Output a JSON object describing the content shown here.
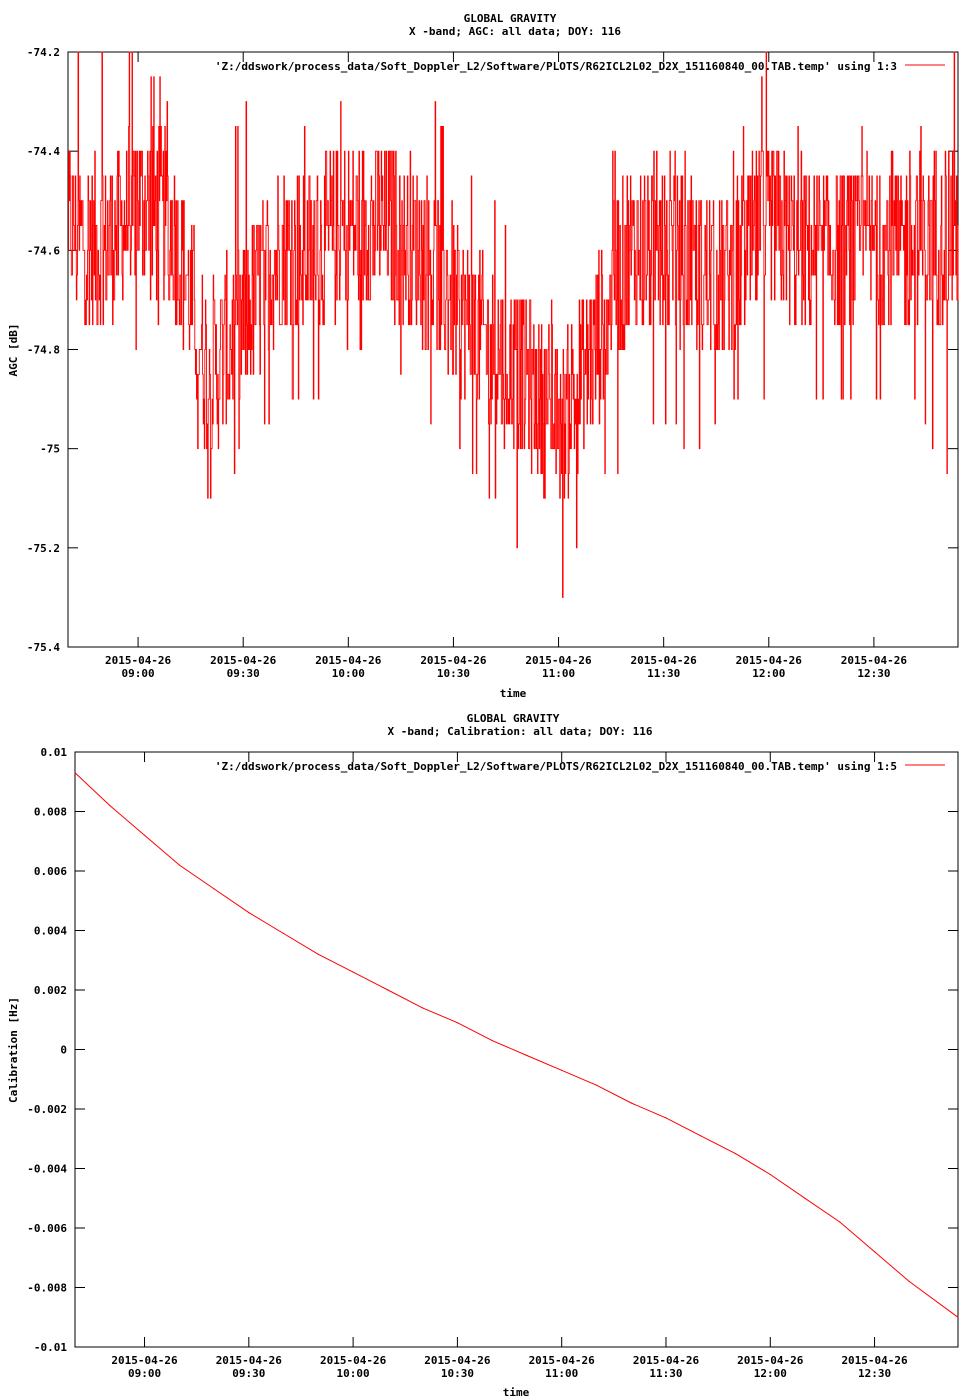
{
  "chart_data": [
    {
      "type": "line",
      "title": "GLOBAL GRAVITY",
      "subtitle": "X -band; AGC: all data; DOY: 116",
      "xlabel": "time",
      "ylabel": "AGC [dB]",
      "legend": "'Z:/ddswork/process_data/Soft_Doppler_L2/Software/PLOTS/R62ICL2L02_D2X_151160840_00.TAB.temp' using 1:3",
      "legend_position": "top-right",
      "color": "#ff0000",
      "xlim": [
        "2015-04-26 08:40",
        "2015-04-26 12:54"
      ],
      "ylim": [
        -75.4,
        -74.2
      ],
      "x_ticks": [
        {
          "date": "2015-04-26",
          "time": "09:00",
          "value": "2015-04-26 09:00"
        },
        {
          "date": "2015-04-26",
          "time": "09:30",
          "value": "2015-04-26 09:30"
        },
        {
          "date": "2015-04-26",
          "time": "10:00",
          "value": "2015-04-26 10:00"
        },
        {
          "date": "2015-04-26",
          "time": "10:30",
          "value": "2015-04-26 10:30"
        },
        {
          "date": "2015-04-26",
          "time": "11:00",
          "value": "2015-04-26 11:00"
        },
        {
          "date": "2015-04-26",
          "time": "11:30",
          "value": "2015-04-26 11:30"
        },
        {
          "date": "2015-04-26",
          "time": "12:00",
          "value": "2015-04-26 12:00"
        },
        {
          "date": "2015-04-26",
          "time": "12:30",
          "value": "2015-04-26 12:30"
        }
      ],
      "y_ticks": [
        "-74.2",
        "-74.4",
        "-74.6",
        "-74.8",
        "-75",
        "-75.2",
        "-75.4"
      ],
      "series": [
        {
          "x": [
            "2015-04-26 08:40",
            "2015-04-26 08:50",
            "2015-04-26 09:00",
            "2015-04-26 09:10",
            "2015-04-26 09:20",
            "2015-04-26 09:30",
            "2015-04-26 09:40",
            "2015-04-26 09:50",
            "2015-04-26 10:00",
            "2015-04-26 10:10",
            "2015-04-26 10:20",
            "2015-04-26 10:30",
            "2015-04-26 10:40",
            "2015-04-26 10:50",
            "2015-04-26 11:00",
            "2015-04-26 11:10",
            "2015-04-26 11:20",
            "2015-04-26 11:30",
            "2015-04-26 11:40",
            "2015-04-26 11:50",
            "2015-04-26 12:00",
            "2015-04-26 12:10",
            "2015-04-26 12:20",
            "2015-04-26 12:30",
            "2015-04-26 12:40",
            "2015-04-26 12:54"
          ],
          "y": [
            -74.55,
            -74.6,
            -74.5,
            -74.55,
            -74.85,
            -74.75,
            -74.6,
            -74.6,
            -74.55,
            -74.55,
            -74.6,
            -74.7,
            -74.8,
            -74.85,
            -74.95,
            -74.8,
            -74.6,
            -74.6,
            -74.65,
            -74.65,
            -74.55,
            -74.6,
            -74.6,
            -74.6,
            -74.6,
            -74.55
          ],
          "min": [
            -74.7,
            -74.8,
            -74.8,
            -74.7,
            -75.1,
            -75.0,
            -74.9,
            -74.9,
            -74.8,
            -74.8,
            -74.9,
            -75.0,
            -75.1,
            -75.2,
            -75.3,
            -75.1,
            -75.0,
            -74.95,
            -75.0,
            -74.9,
            -74.9,
            -74.9,
            -74.9,
            -74.9,
            -74.9,
            -75.1
          ],
          "max": [
            -74.2,
            -74.2,
            -74.2,
            -74.3,
            -74.5,
            -74.3,
            -74.4,
            -74.3,
            -74.3,
            -74.4,
            -74.2,
            -74.4,
            -74.5,
            -74.6,
            -74.7,
            -74.4,
            -74.4,
            -74.4,
            -74.4,
            -74.4,
            -74.2,
            -74.4,
            -74.3,
            -74.4,
            -74.4,
            -74.2
          ]
        }
      ]
    },
    {
      "type": "line",
      "title": "GLOBAL GRAVITY",
      "subtitle": "X -band; Calibration: all data; DOY: 116",
      "xlabel": "time",
      "ylabel": "Calibration [Hz]",
      "legend": "'Z:/ddswork/process_data/Soft_Doppler_L2/Software/PLOTS/R62ICL2L02_D2X_151160840_00.TAB.temp' using 1:5",
      "legend_position": "top-right",
      "color": "#ff0000",
      "xlim": [
        "2015-04-26 08:40",
        "2015-04-26 12:54"
      ],
      "ylim": [
        -0.01,
        0.01
      ],
      "x_ticks": [
        {
          "date": "2015-04-26",
          "time": "09:00",
          "value": "2015-04-26 09:00"
        },
        {
          "date": "2015-04-26",
          "time": "09:30",
          "value": "2015-04-26 09:30"
        },
        {
          "date": "2015-04-26",
          "time": "10:00",
          "value": "2015-04-26 10:00"
        },
        {
          "date": "2015-04-26",
          "time": "10:30",
          "value": "2015-04-26 10:30"
        },
        {
          "date": "2015-04-26",
          "time": "11:00",
          "value": "2015-04-26 11:00"
        },
        {
          "date": "2015-04-26",
          "time": "11:30",
          "value": "2015-04-26 11:30"
        },
        {
          "date": "2015-04-26",
          "time": "12:00",
          "value": "2015-04-26 12:00"
        },
        {
          "date": "2015-04-26",
          "time": "12:30",
          "value": "2015-04-26 12:30"
        }
      ],
      "y_ticks": [
        "0.01",
        "0.008",
        "0.006",
        "0.004",
        "0.002",
        "0",
        "-0.002",
        "-0.004",
        "-0.006",
        "-0.008",
        "-0.01"
      ],
      "series": [
        {
          "x": [
            "2015-04-26 08:40",
            "2015-04-26 08:50",
            "2015-04-26 09:00",
            "2015-04-26 09:10",
            "2015-04-26 09:20",
            "2015-04-26 09:30",
            "2015-04-26 09:40",
            "2015-04-26 09:50",
            "2015-04-26 10:00",
            "2015-04-26 10:10",
            "2015-04-26 10:20",
            "2015-04-26 10:30",
            "2015-04-26 10:40",
            "2015-04-26 10:50",
            "2015-04-26 11:00",
            "2015-04-26 11:10",
            "2015-04-26 11:20",
            "2015-04-26 11:30",
            "2015-04-26 11:40",
            "2015-04-26 11:50",
            "2015-04-26 12:00",
            "2015-04-26 12:10",
            "2015-04-26 12:20",
            "2015-04-26 12:30",
            "2015-04-26 12:40",
            "2015-04-26 12:54"
          ],
          "y": [
            0.0093,
            0.0082,
            0.0072,
            0.0062,
            0.0054,
            0.0046,
            0.0039,
            0.0032,
            0.0026,
            0.002,
            0.0014,
            0.0009,
            0.0003,
            -0.0002,
            -0.0007,
            -0.0012,
            -0.0018,
            -0.0023,
            -0.0029,
            -0.0035,
            -0.0042,
            -0.005,
            -0.0058,
            -0.0068,
            -0.0078,
            -0.009
          ]
        }
      ]
    }
  ]
}
